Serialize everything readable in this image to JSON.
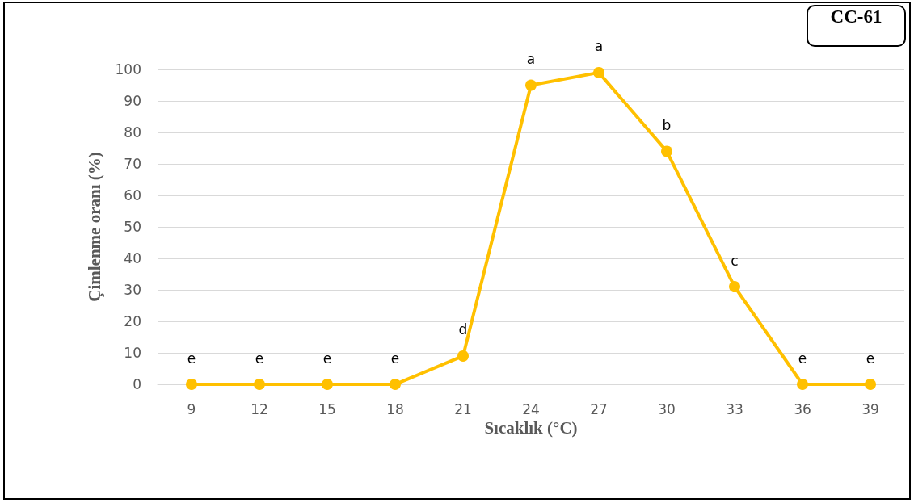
{
  "chart_data": {
    "type": "line",
    "xlabel": "Sıcaklık (°C)",
    "ylabel": "Çimlenme oranı (%)",
    "categories": [
      "9",
      "12",
      "15",
      "18",
      "21",
      "24",
      "27",
      "30",
      "33",
      "36",
      "39"
    ],
    "series": [
      {
        "color": "#ffc000",
        "values": [
          0,
          0,
          0,
          0,
          9,
          95,
          99,
          74,
          31,
          0,
          0
        ]
      }
    ],
    "ylim": [
      0,
      100
    ],
    "yticks": [
      0,
      10,
      20,
      30,
      40,
      50,
      60,
      70,
      80,
      90,
      100
    ],
    "grid": "y",
    "marker": "circle",
    "line_style": "solid",
    "annotations": [
      "CC-61",
      {
        "text": "e",
        "x": "9",
        "y": 0
      },
      {
        "text": "e",
        "x": "12",
        "y": 0
      },
      {
        "text": "e",
        "x": "15",
        "y": 0
      },
      {
        "text": "e",
        "x": "18",
        "y": 0
      },
      {
        "text": "d",
        "x": "21",
        "y": 9
      },
      {
        "text": "a",
        "x": "24",
        "y": 95
      },
      {
        "text": "a",
        "x": "27",
        "y": 99
      },
      {
        "text": "b",
        "x": "30",
        "y": 74
      },
      {
        "text": "c",
        "x": "33",
        "y": 31
      },
      {
        "text": "e",
        "x": "36",
        "y": 0
      },
      {
        "text": "e",
        "x": "39",
        "y": 0
      }
    ]
  }
}
